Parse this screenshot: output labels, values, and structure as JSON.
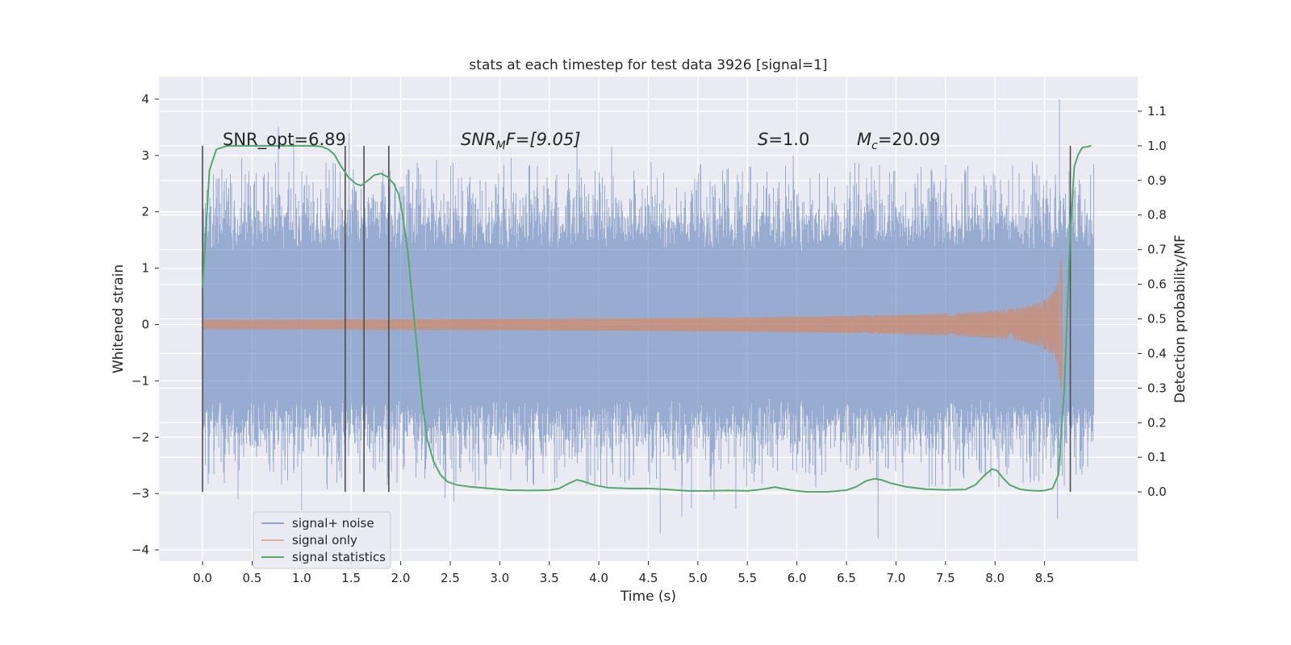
{
  "chart_data": {
    "type": "line",
    "title": "stats at each timestep for test data 3926 [signal=1]",
    "xlabel": "Time (s)",
    "ylabel": "Whitened strain",
    "ylabel_right": "Detection probability/MF",
    "xlim": [
      -0.44,
      9.44
    ],
    "ylim": [
      -4.2,
      4.4
    ],
    "ylim_right": [
      -0.2,
      1.2
    ],
    "x_ticks": [
      "0.0",
      "0.5",
      "1.0",
      "1.5",
      "2.0",
      "2.5",
      "3.0",
      "3.5",
      "4.0",
      "4.5",
      "5.0",
      "5.5",
      "6.0",
      "6.5",
      "7.0",
      "7.5",
      "8.0",
      "8.5"
    ],
    "x_tick_values": [
      0.0,
      0.5,
      1.0,
      1.5,
      2.0,
      2.5,
      3.0,
      3.5,
      4.0,
      4.5,
      5.0,
      5.5,
      6.0,
      6.5,
      7.0,
      7.5,
      8.0,
      8.5
    ],
    "y_ticks": [
      "4",
      "3",
      "2",
      "1",
      "0",
      "−1",
      "−2",
      "−3",
      "−4"
    ],
    "y_tick_values": [
      4,
      3,
      2,
      1,
      0,
      -1,
      -2,
      -3,
      -4
    ],
    "y_right_ticks": [
      "1.1",
      "1.0",
      "0.9",
      "0.8",
      "0.7",
      "0.6",
      "0.5",
      "0.4",
      "0.3",
      "0.2",
      "0.1",
      "0.0"
    ],
    "y_right_tick_values": [
      1.1,
      1.0,
      0.9,
      0.8,
      0.7,
      0.6,
      0.5,
      0.4,
      0.3,
      0.2,
      0.1,
      0.0
    ],
    "annotations": {
      "snr_opt": "SNR_opt=6.89",
      "snr_mf_prefix": "SNR",
      "snr_mf_sub": "M",
      "snr_mf_rest": "F=[9.05]",
      "s_prefix": "S",
      "s_rest": "=1.0",
      "mc_prefix": "M",
      "mc_sub": "c",
      "mc_rest": "=20.09"
    },
    "vertical_markers_x": [
      0.0,
      1.44,
      1.63,
      1.88,
      8.76
    ],
    "series": [
      {
        "name": "signal+ noise",
        "color": "#4c72b0",
        "type": "noise_band",
        "x_range": [
          0.0,
          9.0
        ],
        "typical_amplitude": 1.3,
        "envelope_peaks": [
          [
            0.92,
            3.3
          ],
          [
            1.48,
            3.4
          ],
          [
            3.78,
            3.4
          ],
          [
            8.65,
            4.0
          ],
          [
            4.62,
            -3.7
          ],
          [
            6.82,
            -3.8
          ],
          [
            8.63,
            -3.45
          ],
          [
            1.0,
            -3.3
          ]
        ]
      },
      {
        "name": "signal only",
        "color": "#dd8452",
        "type": "chirp",
        "x_range": [
          0.0,
          8.69
        ],
        "merger_time": 8.68,
        "peak_amplitude": 1.25
      },
      {
        "name": "signal statistics",
        "color": "#55a868",
        "axis": "right",
        "x": [
          0.0,
          0.07,
          0.14,
          0.25,
          0.4,
          0.6,
          0.8,
          1.0,
          1.1,
          1.2,
          1.27,
          1.33,
          1.4,
          1.47,
          1.55,
          1.6,
          1.67,
          1.73,
          1.8,
          1.87,
          1.93,
          1.98,
          2.02,
          2.07,
          2.12,
          2.17,
          2.22,
          2.27,
          2.33,
          2.4,
          2.47,
          2.57,
          2.7,
          2.9,
          3.1,
          3.3,
          3.5,
          3.6,
          3.7,
          3.78,
          3.85,
          3.95,
          4.1,
          4.3,
          4.5,
          4.7,
          4.9,
          5.1,
          5.3,
          5.5,
          5.6,
          5.7,
          5.78,
          5.85,
          5.95,
          6.1,
          6.3,
          6.5,
          6.6,
          6.7,
          6.78,
          6.85,
          6.95,
          7.1,
          7.3,
          7.5,
          7.7,
          7.8,
          7.9,
          7.97,
          8.02,
          8.08,
          8.15,
          8.25,
          8.35,
          8.45,
          8.5,
          8.58,
          8.64,
          8.7,
          8.76,
          8.8,
          8.84,
          8.88,
          8.93,
          8.97
        ],
        "values": [
          0.59,
          0.93,
          0.99,
          1.0,
          1.0,
          1.0,
          1.0,
          1.0,
          1.0,
          0.998,
          0.99,
          0.975,
          0.94,
          0.91,
          0.89,
          0.885,
          0.9,
          0.915,
          0.92,
          0.91,
          0.89,
          0.86,
          0.8,
          0.7,
          0.55,
          0.4,
          0.25,
          0.15,
          0.09,
          0.05,
          0.03,
          0.02,
          0.015,
          0.01,
          0.005,
          0.004,
          0.005,
          0.01,
          0.025,
          0.035,
          0.03,
          0.02,
          0.012,
          0.01,
          0.01,
          0.007,
          0.003,
          0.003,
          0.004,
          0.003,
          0.006,
          0.01,
          0.014,
          0.01,
          0.005,
          0.0,
          0.0,
          0.005,
          0.015,
          0.032,
          0.038,
          0.035,
          0.025,
          0.015,
          0.008,
          0.006,
          0.007,
          0.02,
          0.05,
          0.066,
          0.062,
          0.04,
          0.02,
          0.008,
          0.004,
          0.003,
          0.004,
          0.01,
          0.05,
          0.3,
          0.75,
          0.94,
          0.975,
          0.995,
          0.997,
          1.0
        ]
      }
    ],
    "legend": {
      "position": "lower-left",
      "entries": [
        {
          "label": "signal+ noise",
          "color": "#4c72b0"
        },
        {
          "label": "signal only",
          "color": "#dd8452"
        },
        {
          "label": "signal statistics",
          "color": "#55a868"
        }
      ]
    },
    "style": {
      "background": "#eaeaf2",
      "grid_color": "#ffffff",
      "marker_color": "#4d4d4d",
      "text_color": "#262626"
    }
  }
}
